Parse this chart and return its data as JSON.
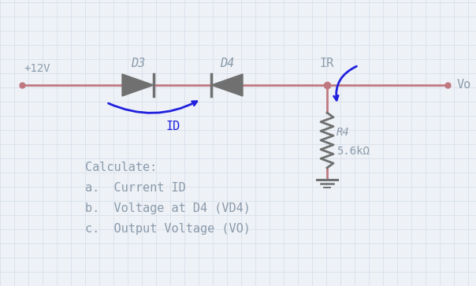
{
  "bg_color": "#eef2f7",
  "wire_color": "#c07880",
  "component_color": "#707070",
  "text_color": "#8a9aaa",
  "blue_color": "#2020dd",
  "grid_color": "#d5dce8",
  "volt_label": "+12V",
  "vo_label": "Vo",
  "d3_label": "D3",
  "d4_label": "D4",
  "ir_label": "IR",
  "id_label": "ID",
  "r4_label": "R4",
  "r4_val": "5.6kΩ",
  "calc_text": [
    "Calculate:",
    "a.  Current ID",
    "b.  Voltage at D4 (VD4)",
    "c.  Output Voltage (VO)"
  ],
  "figsize": [
    6.04,
    3.63
  ],
  "dpi": 100
}
